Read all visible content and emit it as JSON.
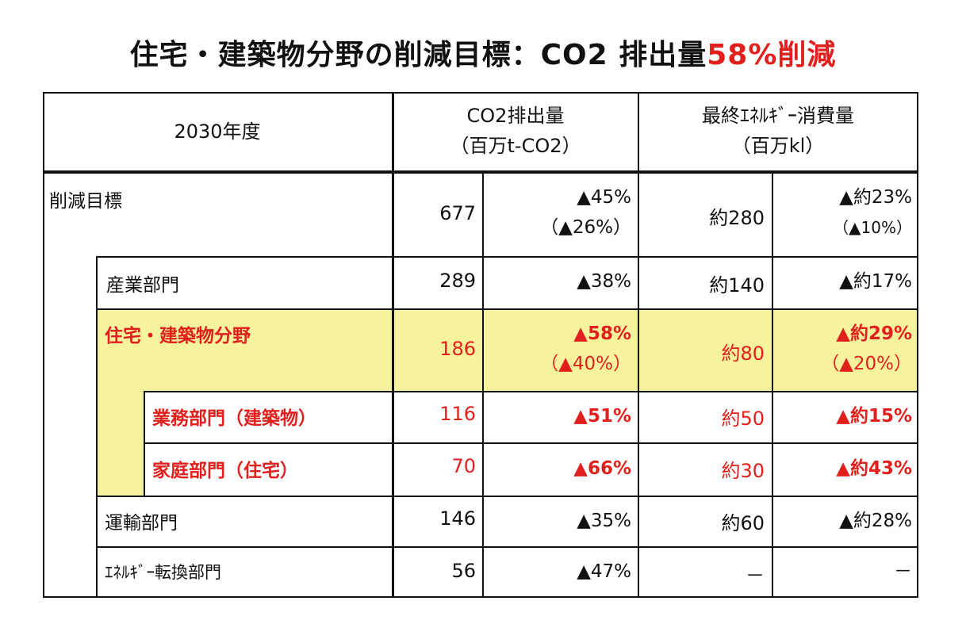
{
  "title": {
    "main": "住宅・建築物分野の削減目標：CO2 排出量",
    "highlight": "58%削減"
  },
  "header": {
    "year_label": "2030年度",
    "co2_line1": "CO2排出量",
    "co2_line2": "（百万t-CO2）",
    "energy_line1": "最終ｴﾈﾙｷﾞｰ消費量",
    "energy_line2": "（百万kl）"
  },
  "rows": [
    {
      "label": "削減目標",
      "co2": "677",
      "co2_pct": "▲45%",
      "co2_pct_sub": "（▲26%）",
      "energy": "約280",
      "energy_pct": "▲約23%",
      "energy_pct_sub": "（▲10%）"
    },
    {
      "label": "産業部門",
      "co2": "289",
      "co2_pct": "▲38%",
      "energy": "約140",
      "energy_pct": "▲約17%"
    },
    {
      "label": "住宅・建築物分野",
      "co2": "186",
      "co2_pct": "▲58%",
      "co2_pct_sub": "（▲40%）",
      "energy": "約80",
      "energy_pct": "▲約29%",
      "energy_pct_sub": "（▲20%）"
    },
    {
      "label": "業務部門（建築物）",
      "co2": "116",
      "co2_pct": "▲51%",
      "energy": "約50",
      "energy_pct": "▲約15%"
    },
    {
      "label": "家庭部門（住宅）",
      "co2": "70",
      "co2_pct": "▲66%",
      "energy": "約30",
      "energy_pct": "▲約43%"
    },
    {
      "label": "運輸部門",
      "co2": "146",
      "co2_pct": "▲35%",
      "energy": "約60",
      "energy_pct": "▲約28%"
    },
    {
      "label": "ｴﾈﾙｷﾞｰ転換部門",
      "co2": "56",
      "co2_pct": "▲47%",
      "energy": "－",
      "energy_pct": "－"
    }
  ],
  "colors": {
    "accent_red": "#e0201c",
    "highlight_yellow": "#f7f29e"
  }
}
